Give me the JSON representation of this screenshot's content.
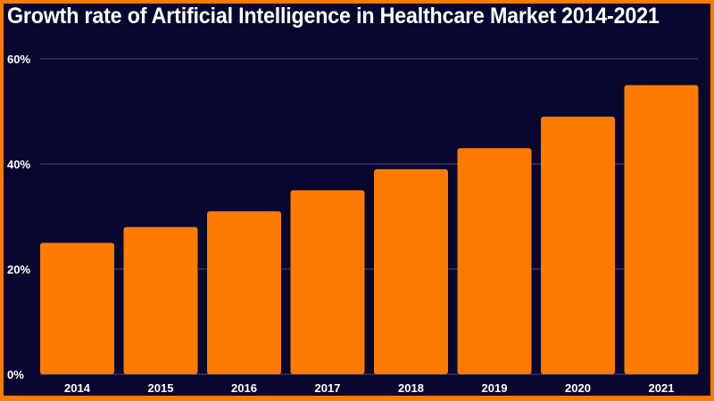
{
  "chart_data": {
    "type": "bar",
    "title": "Growth rate of Artificial Intelligence in Healthcare Market 2014-2021",
    "categories": [
      "2014",
      "2015",
      "2016",
      "2017",
      "2018",
      "2019",
      "2020",
      "2021"
    ],
    "values": [
      25,
      28,
      31,
      35,
      39,
      43,
      49,
      55
    ],
    "xlabel": "",
    "ylabel": "",
    "ylim": [
      0,
      60
    ],
    "yticks": [
      "0%",
      "20%",
      "40%",
      "60%"
    ],
    "grid": true,
    "colors": {
      "bar": "#ff7b00",
      "background": "#07072f",
      "frame": "#ff7b00",
      "grid": "#4a4a78",
      "text": "#ffffff"
    }
  }
}
